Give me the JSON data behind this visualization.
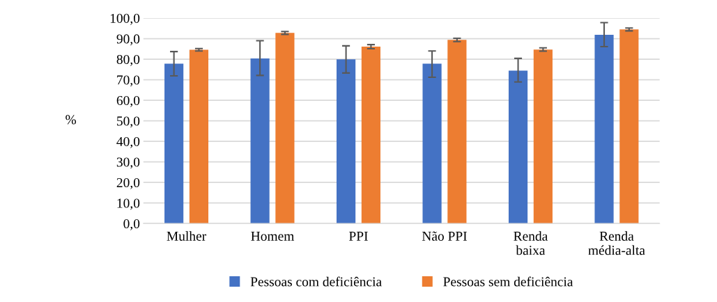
{
  "chart_data": {
    "type": "bar",
    "ylabel": "%",
    "categories": [
      "Mulher",
      "Homem",
      "PPI",
      "Não PPI",
      "Renda\nbaixa",
      "Renda\nmédia-alta"
    ],
    "series": [
      {
        "name": "Pessoas com deficiência",
        "color": "#4472c4",
        "values": [
          77.8,
          80.4,
          79.9,
          77.8,
          74.4,
          91.9
        ],
        "errors": [
          [
            71.9,
            83.7
          ],
          [
            72.1,
            89.0
          ],
          [
            73.3,
            86.5
          ],
          [
            71.2,
            84.0
          ],
          [
            68.9,
            80.4
          ],
          [
            86.1,
            97.8
          ]
        ]
      },
      {
        "name": "Pessoas sem deficiência",
        "color": "#ed7d31",
        "values": [
          84.6,
          92.8,
          86.1,
          89.4,
          84.7,
          94.5
        ],
        "errors": [
          0.6,
          0.7,
          1.0,
          0.8,
          0.8,
          0.7
        ]
      }
    ],
    "ylim": [
      0,
      100
    ],
    "yticks": [
      {
        "value": 0,
        "label": "0,0"
      },
      {
        "value": 10,
        "label": "10,0"
      },
      {
        "value": 20,
        "label": "20,0"
      },
      {
        "value": 30,
        "label": "30,0"
      },
      {
        "value": 40,
        "label": "40,0"
      },
      {
        "value": 50,
        "label": "50,0"
      },
      {
        "value": 60,
        "label": "60,0"
      },
      {
        "value": 70,
        "label": "70,0"
      },
      {
        "value": 80,
        "label": "80,0"
      },
      {
        "value": 90,
        "label": "90,0"
      },
      {
        "value": 100,
        "label": "100,0"
      }
    ],
    "grid": "y",
    "legend": "bottom"
  }
}
